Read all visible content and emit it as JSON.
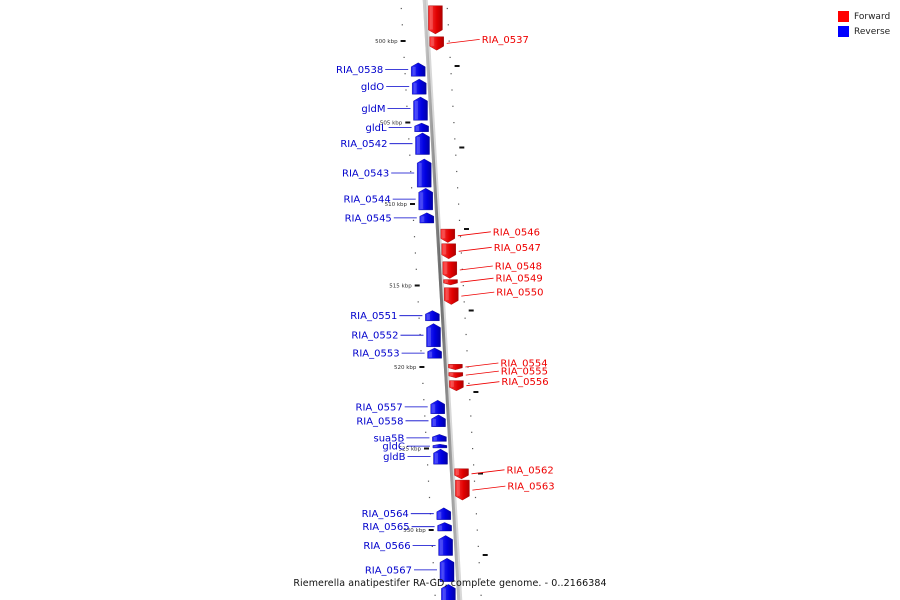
{
  "legend": {
    "forward_label": "Forward",
    "reverse_label": "Reverse",
    "forward_color": "#ff0000",
    "reverse_color": "#0000ff"
  },
  "caption": "Riemerella anatipestifer RA-GD, complete genome. - 0..2166384",
  "map": {
    "start_kbp": 497.8,
    "end_kbp": 535.5,
    "ticks": [
      {
        "kbp": 500,
        "label": "500 kbp"
      },
      {
        "kbp": 505,
        "label": "505 kbp"
      },
      {
        "kbp": 510,
        "label": "510 kbp"
      },
      {
        "kbp": 515,
        "label": "515 kbp"
      },
      {
        "kbp": 520,
        "label": "520 kbp"
      },
      {
        "kbp": 525,
        "label": "525 kbp"
      },
      {
        "kbp": 530,
        "label": "530 kbp"
      }
    ],
    "genes": [
      {
        "name": "",
        "strand": "+",
        "start": 497.8,
        "end": 499.6
      },
      {
        "name": "RIA_0537",
        "strand": "+",
        "start": 499.7,
        "end": 500.6
      },
      {
        "name": "RIA_0538",
        "strand": "-",
        "start": 501.3,
        "end": 502.2
      },
      {
        "name": "gldO",
        "strand": "-",
        "start": 502.3,
        "end": 503.3
      },
      {
        "name": "gldM",
        "strand": "-",
        "start": 503.4,
        "end": 504.9
      },
      {
        "name": "gldL",
        "strand": "-",
        "start": 505.0,
        "end": 505.6
      },
      {
        "name": "RIA_0542",
        "strand": "-",
        "start": 505.6,
        "end": 507.0
      },
      {
        "name": "RIA_0543",
        "strand": "-",
        "start": 507.2,
        "end": 509.0
      },
      {
        "name": "RIA_0544",
        "strand": "-",
        "start": 509.0,
        "end": 510.4
      },
      {
        "name": "RIA_0545",
        "strand": "-",
        "start": 510.5,
        "end": 511.2
      },
      {
        "name": "RIA_0546",
        "strand": "+",
        "start": 511.5,
        "end": 512.4
      },
      {
        "name": "RIA_0547",
        "strand": "+",
        "start": 512.4,
        "end": 513.4
      },
      {
        "name": "RIA_0548",
        "strand": "+",
        "start": 513.5,
        "end": 514.6
      },
      {
        "name": "RIA_0549",
        "strand": "+",
        "start": 514.6,
        "end": 515.0
      },
      {
        "name": "RIA_0550",
        "strand": "+",
        "start": 515.1,
        "end": 516.2
      },
      {
        "name": "RIA_0551",
        "strand": "-",
        "start": 516.5,
        "end": 517.2
      },
      {
        "name": "RIA_0552",
        "strand": "-",
        "start": 517.3,
        "end": 518.8
      },
      {
        "name": "RIA_0553",
        "strand": "-",
        "start": 518.8,
        "end": 519.5
      },
      {
        "name": "RIA_0554",
        "strand": "+",
        "start": 519.8,
        "end": 520.2
      },
      {
        "name": "RIA_0555",
        "strand": "+",
        "start": 520.3,
        "end": 520.7
      },
      {
        "name": "RIA_0556",
        "strand": "+",
        "start": 520.8,
        "end": 521.5
      },
      {
        "name": "RIA_0557",
        "strand": "-",
        "start": 522.0,
        "end": 522.9
      },
      {
        "name": "RIA_0558",
        "strand": "-",
        "start": 522.9,
        "end": 523.7
      },
      {
        "name": "sua5B",
        "strand": "-",
        "start": 524.1,
        "end": 524.6
      },
      {
        "name": "gldC",
        "strand": "-",
        "start": 524.7,
        "end": 525.0
      },
      {
        "name": "gldB",
        "strand": "-",
        "start": 525.0,
        "end": 526.0
      },
      {
        "name": "RIA_0562",
        "strand": "+",
        "start": 526.2,
        "end": 526.9
      },
      {
        "name": "RIA_0563",
        "strand": "+",
        "start": 526.9,
        "end": 528.2
      },
      {
        "name": "RIA_0564",
        "strand": "-",
        "start": 528.6,
        "end": 529.4
      },
      {
        "name": "RIA_0565",
        "strand": "-",
        "start": 529.5,
        "end": 530.1
      },
      {
        "name": "RIA_0566",
        "strand": "-",
        "start": 530.3,
        "end": 531.6
      },
      {
        "name": "RIA_0567",
        "strand": "-",
        "start": 531.7,
        "end": 533.2
      },
      {
        "name": "",
        "strand": "-",
        "start": 533.3,
        "end": 535.5
      }
    ]
  }
}
